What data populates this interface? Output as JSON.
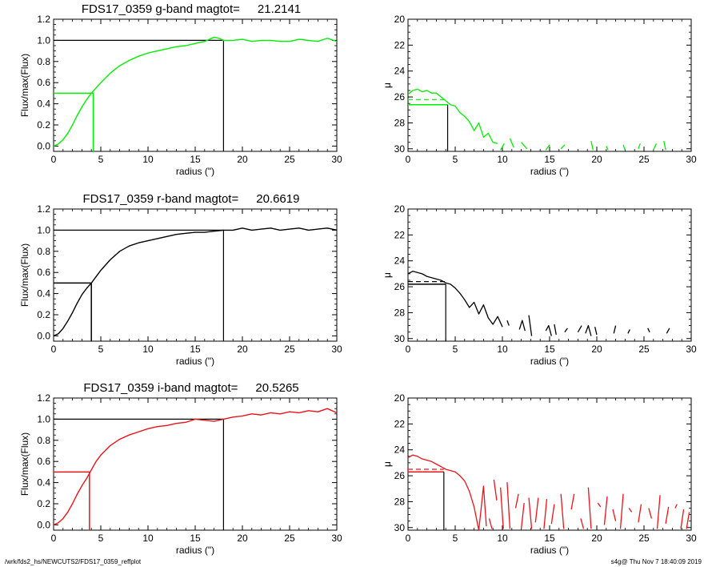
{
  "footer": {
    "path": "/wrk/fds2_hs/NEWCUTS2/FDS17_0359_reffplot",
    "stamp": "s4g@  Thu Nov  7 18:40:09 2019"
  },
  "chart_data": [
    {
      "type": "line",
      "band": "g",
      "color": "#00ee00",
      "title_prefix": "FDS17_0359 g-band  magtot=",
      "title_value": "21.2141",
      "xlabel": "radius (\")",
      "ylabel": "Flux/max(Flux)",
      "xlim": [
        0,
        30
      ],
      "ylim": [
        -0.05,
        1.2
      ],
      "xticks": [
        "0",
        "5",
        "10",
        "15",
        "20",
        "25",
        "30"
      ],
      "yticks": [
        "0.0",
        "0.2",
        "0.4",
        "0.6",
        "0.8",
        "1.0",
        "1.2"
      ],
      "x": [
        0,
        0.5,
        1,
        1.5,
        2,
        2.5,
        3,
        3.5,
        4,
        4.5,
        5,
        6,
        7,
        8,
        9,
        10,
        11,
        12,
        13,
        14,
        15,
        16,
        17,
        17.5,
        18,
        19,
        20,
        21,
        22,
        23,
        24,
        25,
        26,
        27,
        28,
        29,
        30
      ],
      "y": [
        0,
        0.02,
        0.06,
        0.12,
        0.2,
        0.29,
        0.37,
        0.44,
        0.5,
        0.55,
        0.6,
        0.69,
        0.76,
        0.81,
        0.85,
        0.88,
        0.9,
        0.92,
        0.94,
        0.95,
        0.97,
        0.99,
        1.03,
        1.02,
        1.0,
        1.0,
        1.01,
        0.99,
        1.0,
        1.0,
        0.99,
        0.99,
        1.01,
        1.0,
        0.99,
        1.02,
        0.99
      ],
      "half_light": {
        "radius": 4.2,
        "level": 0.5
      },
      "total": {
        "radius": 18,
        "level": 1.0
      }
    },
    {
      "type": "line",
      "band": "g",
      "color": "#00ee00",
      "xlabel": "radius (\")",
      "ylabel": "μ",
      "xlim": [
        0,
        30
      ],
      "ylim": [
        30.2,
        20
      ],
      "xticks": [
        "0",
        "5",
        "10",
        "15",
        "20",
        "25",
        "30"
      ],
      "yticks": [
        "20",
        "22",
        "24",
        "26",
        "28",
        "30"
      ],
      "segments": [
        [
          [
            0,
            25.8
          ],
          [
            0.5,
            25.5
          ],
          [
            1,
            25.4
          ],
          [
            1.5,
            25.6
          ],
          [
            2,
            25.5
          ],
          [
            2.5,
            25.7
          ],
          [
            3,
            25.7
          ],
          [
            3.5,
            26.0
          ],
          [
            4,
            26.3
          ],
          [
            4.5,
            26.6
          ],
          [
            5,
            26.7
          ],
          [
            5.5,
            27.2
          ],
          [
            6,
            27.5
          ],
          [
            6.5,
            27.9
          ],
          [
            7,
            28.6
          ],
          [
            7.5,
            28.0
          ],
          [
            8,
            29.1
          ],
          [
            8.5,
            28.8
          ],
          [
            9,
            29.5
          ],
          [
            9.5,
            29.6
          ]
        ],
        [
          [
            9.8,
            30.1
          ],
          [
            10.2,
            29.6
          ]
        ],
        [
          [
            10.8,
            29.2
          ],
          [
            11.2,
            29.9
          ]
        ],
        [
          [
            12.0,
            29.5
          ],
          [
            12.6,
            30.0
          ]
        ],
        [
          [
            14.6,
            30.1
          ],
          [
            15.0,
            29.7
          ]
        ],
        [
          [
            16.2,
            30.0
          ],
          [
            16.6,
            29.7
          ]
        ],
        [
          [
            19.4,
            29.4
          ],
          [
            19.6,
            30.1
          ]
        ],
        [
          [
            21.0,
            29.8
          ],
          [
            21.2,
            30.1
          ]
        ],
        [
          [
            22.8,
            29.7
          ],
          [
            23.0,
            30.1
          ]
        ],
        [
          [
            24.4,
            30.0
          ],
          [
            24.6,
            29.6
          ]
        ],
        [
          [
            26.0,
            30.1
          ],
          [
            26.3,
            29.6
          ]
        ],
        [
          [
            27.1,
            29.4
          ],
          [
            27.3,
            30.1
          ]
        ]
      ],
      "dashed_level": 26.2,
      "half_light": {
        "radius": 4.2,
        "level": 26.6
      }
    },
    {
      "type": "line",
      "band": "r",
      "color": "#000000",
      "title_prefix": "FDS17_0359 r-band  magtot=",
      "title_value": "20.6619",
      "xlabel": "radius (\")",
      "ylabel": "Flux/max(Flux)",
      "xlim": [
        0,
        30
      ],
      "ylim": [
        -0.05,
        1.2
      ],
      "xticks": [
        "0",
        "5",
        "10",
        "15",
        "20",
        "25",
        "30"
      ],
      "yticks": [
        "0.0",
        "0.2",
        "0.4",
        "0.6",
        "0.8",
        "1.0",
        "1.2"
      ],
      "x": [
        0,
        0.5,
        1,
        1.5,
        2,
        2.5,
        3,
        3.5,
        4,
        4.5,
        5,
        6,
        7,
        8,
        9,
        10,
        11,
        12,
        13,
        14,
        15,
        16,
        17,
        18,
        19,
        20,
        21,
        22,
        23,
        24,
        25,
        26,
        27,
        28,
        29,
        30
      ],
      "y": [
        0,
        0.02,
        0.07,
        0.14,
        0.22,
        0.31,
        0.39,
        0.45,
        0.5,
        0.56,
        0.62,
        0.72,
        0.8,
        0.85,
        0.88,
        0.9,
        0.92,
        0.94,
        0.96,
        0.97,
        0.98,
        0.98,
        0.99,
        1.0,
        1.0,
        1.02,
        1.0,
        1.01,
        1.02,
        1.0,
        1.01,
        1.02,
        1.0,
        1.01,
        1.02,
        1.0
      ],
      "half_light": {
        "radius": 4.0,
        "level": 0.5
      },
      "total": {
        "radius": 18,
        "level": 1.0
      }
    },
    {
      "type": "line",
      "band": "r",
      "color": "#000000",
      "xlabel": "radius (\")",
      "ylabel": "μ",
      "xlim": [
        0,
        30
      ],
      "ylim": [
        30.2,
        20
      ],
      "xticks": [
        "0",
        "5",
        "10",
        "15",
        "20",
        "25",
        "30"
      ],
      "yticks": [
        "20",
        "22",
        "24",
        "26",
        "28",
        "30"
      ],
      "segments": [
        [
          [
            0,
            25.0
          ],
          [
            0.5,
            24.8
          ],
          [
            1,
            24.9
          ],
          [
            1.5,
            25.0
          ],
          [
            2,
            25.2
          ],
          [
            2.5,
            25.3
          ],
          [
            3,
            25.4
          ],
          [
            3.5,
            25.5
          ],
          [
            4,
            25.7
          ],
          [
            4.5,
            25.8
          ],
          [
            5,
            26.1
          ],
          [
            5.5,
            26.5
          ],
          [
            6,
            27.0
          ],
          [
            6.5,
            27.6
          ],
          [
            7,
            27.2
          ],
          [
            7.5,
            28.1
          ],
          [
            8,
            27.4
          ],
          [
            8.5,
            28.4
          ],
          [
            9,
            28.9
          ],
          [
            9.5,
            28.3
          ],
          [
            10,
            29.1
          ]
        ],
        [
          [
            10.5,
            28.6
          ],
          [
            10.7,
            29.0
          ]
        ],
        [
          [
            11.8,
            29.3
          ],
          [
            12.1,
            28.6
          ],
          [
            12.4,
            29.4
          ]
        ],
        [
          [
            12.8,
            28.2
          ],
          [
            13.1,
            29.8
          ]
        ],
        [
          [
            14.6,
            29.4
          ],
          [
            14.9,
            29.0
          ],
          [
            15.2,
            29.8
          ]
        ],
        [
          [
            15.5,
            28.9
          ],
          [
            15.7,
            29.7
          ]
        ],
        [
          [
            16.6,
            29.5
          ],
          [
            16.9,
            29.2
          ]
        ],
        [
          [
            18.0,
            29.5
          ],
          [
            18.4,
            29.0
          ]
        ],
        [
          [
            18.8,
            29.6
          ],
          [
            19.1,
            29.0
          ],
          [
            19.4,
            29.8
          ]
        ],
        [
          [
            19.8,
            29.1
          ],
          [
            20.0,
            29.7
          ]
        ],
        [
          [
            21.8,
            29.6
          ],
          [
            22.0,
            29.0
          ]
        ],
        [
          [
            23.3,
            29.6
          ],
          [
            23.5,
            29.3
          ]
        ],
        [
          [
            25.4,
            29.2
          ],
          [
            25.6,
            29.5
          ]
        ],
        [
          [
            27.4,
            29.6
          ],
          [
            27.7,
            29.2
          ]
        ]
      ],
      "dashed_level": 25.6,
      "half_light": {
        "radius": 4.0,
        "level": 25.8
      }
    },
    {
      "type": "line",
      "band": "i",
      "color": "#e8141a",
      "title_prefix": "FDS17_0359 i-band  magtot=",
      "title_value": "20.5265",
      "xlabel": "radius (\")",
      "ylabel": "Flux/max(Flux)",
      "xlim": [
        0,
        30
      ],
      "ylim": [
        -0.05,
        1.2
      ],
      "xticks": [
        "0",
        "5",
        "10",
        "15",
        "20",
        "25",
        "30"
      ],
      "yticks": [
        "0.0",
        "0.2",
        "0.4",
        "0.6",
        "0.8",
        "1.0",
        "1.2"
      ],
      "x": [
        0,
        0.5,
        1,
        1.5,
        2,
        2.5,
        3,
        3.5,
        4,
        4.5,
        5,
        6,
        7,
        8,
        9,
        10,
        11,
        12,
        13,
        14,
        15,
        16,
        17,
        18,
        19,
        20,
        21,
        22,
        23,
        24,
        25,
        26,
        27,
        28,
        29,
        30
      ],
      "y": [
        0,
        0.02,
        0.06,
        0.12,
        0.2,
        0.29,
        0.37,
        0.44,
        0.52,
        0.6,
        0.66,
        0.75,
        0.81,
        0.85,
        0.88,
        0.91,
        0.93,
        0.94,
        0.96,
        0.97,
        1.0,
        0.99,
        0.98,
        1.0,
        1.02,
        1.03,
        1.05,
        1.04,
        1.06,
        1.05,
        1.07,
        1.06,
        1.08,
        1.07,
        1.1,
        1.06
      ],
      "half_light": {
        "radius": 3.8,
        "level": 0.5
      },
      "total": {
        "radius": 18,
        "level": 1.0
      }
    },
    {
      "type": "line",
      "band": "i",
      "color": "#e8141a",
      "xlabel": "radius (\")",
      "ylabel": "μ",
      "xlim": [
        0,
        30
      ],
      "ylim": [
        30.2,
        20
      ],
      "xticks": [
        "0",
        "5",
        "10",
        "15",
        "20",
        "25",
        "30"
      ],
      "yticks": [
        "20",
        "22",
        "24",
        "26",
        "28",
        "30"
      ],
      "segments": [
        [
          [
            0,
            24.6
          ],
          [
            0.5,
            24.4
          ],
          [
            1,
            24.5
          ],
          [
            1.5,
            24.7
          ],
          [
            2,
            24.8
          ],
          [
            2.5,
            24.9
          ],
          [
            3,
            25.1
          ],
          [
            3.5,
            25.3
          ],
          [
            4,
            25.5
          ],
          [
            4.5,
            25.6
          ],
          [
            5,
            25.7
          ],
          [
            5.5,
            26.0
          ],
          [
            6,
            26.4
          ],
          [
            6.5,
            27.2
          ],
          [
            7,
            28.4
          ],
          [
            7.5,
            30.2
          ],
          [
            8,
            26.8
          ],
          [
            8.3,
            29.9
          ]
        ],
        [
          [
            8.6,
            29.3
          ],
          [
            8.9,
            30.1
          ]
        ],
        [
          [
            9.1,
            26.3
          ],
          [
            9.4,
            27.9
          ]
        ],
        [
          [
            9.8,
            26.9
          ],
          [
            10.1,
            30.1
          ]
        ],
        [
          [
            10.5,
            26.5
          ],
          [
            10.8,
            30.1
          ]
        ],
        [
          [
            11.4,
            28.5
          ],
          [
            11.7,
            27.4
          ]
        ],
        [
          [
            12.0,
            30.1
          ],
          [
            12.3,
            28.1
          ]
        ],
        [
          [
            12.8,
            27.7
          ],
          [
            13.1,
            30.1
          ]
        ],
        [
          [
            13.5,
            29.6
          ],
          [
            13.8,
            27.7
          ]
        ],
        [
          [
            14.4,
            30.1
          ],
          [
            14.7,
            27.8
          ]
        ],
        [
          [
            15.2,
            29.7
          ],
          [
            15.5,
            28.2
          ]
        ],
        [
          [
            16.2,
            27.4
          ],
          [
            16.5,
            30.1
          ]
        ],
        [
          [
            17.3,
            28.6
          ],
          [
            17.6,
            27.4
          ]
        ],
        [
          [
            18.3,
            29.3
          ],
          [
            18.6,
            30.1
          ]
        ],
        [
          [
            19.1,
            26.9
          ],
          [
            19.4,
            30.1
          ]
        ],
        [
          [
            20.1,
            28.1
          ],
          [
            20.4,
            28.4
          ]
        ],
        [
          [
            20.8,
            29.8
          ],
          [
            21.1,
            27.6
          ]
        ],
        [
          [
            21.7,
            28.6
          ],
          [
            22.0,
            29.5
          ]
        ],
        [
          [
            22.5,
            30.1
          ],
          [
            22.8,
            27.4
          ]
        ],
        [
          [
            23.4,
            28.5
          ],
          [
            23.7,
            28.8
          ]
        ],
        [
          [
            24.4,
            29.6
          ],
          [
            24.7,
            28.2
          ]
        ],
        [
          [
            25.5,
            28.5
          ],
          [
            25.8,
            29.3
          ]
        ],
        [
          [
            26.4,
            30.1
          ],
          [
            26.7,
            27.5
          ]
        ],
        [
          [
            27.3,
            29.7
          ],
          [
            27.6,
            28.4
          ]
        ],
        [
          [
            28.3,
            28.5
          ],
          [
            28.5,
            28.2
          ]
        ],
        [
          [
            28.9,
            30.1
          ],
          [
            29.2,
            28.6
          ]
        ],
        [
          [
            29.5,
            30.1
          ],
          [
            29.8,
            28.8
          ]
        ]
      ],
      "dashed_level": 25.5,
      "half_light": {
        "radius": 3.8,
        "level": 25.7
      }
    }
  ]
}
